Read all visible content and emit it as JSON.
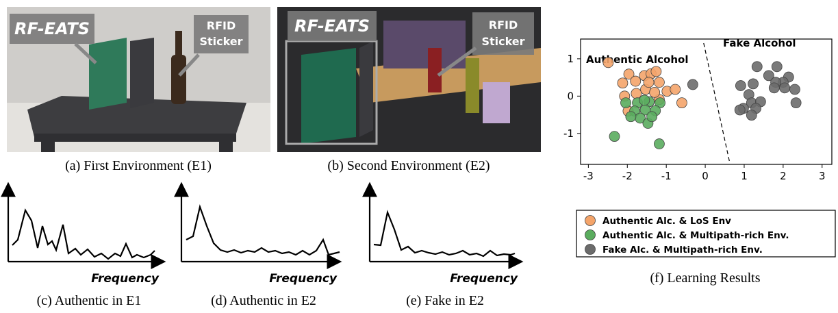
{
  "panels": {
    "a": {
      "caption": "(a) First Environment (E1)",
      "device_label": "RF-EATS",
      "sticker_label": [
        "RFID",
        "Sticker"
      ]
    },
    "b": {
      "caption": "(b) Second Environment (E2)",
      "device_label": "RF-EATS",
      "sticker_label": [
        "RFID",
        "Sticker"
      ]
    },
    "c": {
      "caption": "(c) Authentic in E1",
      "axis_label": "Frequency"
    },
    "d": {
      "caption": "(d) Authentic in E2",
      "axis_label": "Frequency"
    },
    "e": {
      "caption": "(e) Fake in E2",
      "axis_label": "Frequency"
    },
    "f": {
      "caption": "(f) Learning Results"
    }
  },
  "chart_data": {
    "type": "scatter",
    "annotations": [
      "Authentic Alcohol",
      "Fake Alcohol"
    ],
    "xlim": [
      -3.2,
      3.25
    ],
    "ylim": [
      -1.83,
      1.53
    ],
    "xticks": [
      -3,
      -2,
      -1,
      0,
      1,
      2,
      3
    ],
    "yticks": [
      -1,
      0,
      1
    ],
    "boundary": {
      "x": [
        -0.04,
        0.63
      ],
      "y": [
        1.42,
        -1.79
      ]
    },
    "series": [
      {
        "name": "Authentic Alc. & LoS Env",
        "color": "#f4a46a",
        "x": [
          -2.49,
          -1.96,
          -1.56,
          -1.39,
          -1.26,
          -1.18,
          -1.79,
          -2.12,
          -0.98,
          -0.77,
          -1.53,
          -1.77,
          -2.07,
          -0.6,
          -1.18,
          -1.98,
          -1.45,
          -1.3
        ],
        "values": [
          0.9,
          0.59,
          0.55,
          0.6,
          0.66,
          0.37,
          0.4,
          0.35,
          0.13,
          0.18,
          0.18,
          0.07,
          0,
          -0.18,
          -0.09,
          -0.4,
          0.37,
          0.1
        ]
      },
      {
        "name": "Authentic Alc. & Multipath-rich Env.",
        "color": "#5aac5e",
        "x": [
          -2.04,
          -1.74,
          -1.44,
          -1.16,
          -1.81,
          -1.54,
          -1.28,
          -1.67,
          -1.47,
          -1.91,
          -1.37,
          -2.33,
          -1.18,
          -1.56
        ],
        "values": [
          -0.18,
          -0.18,
          -0.15,
          -0.18,
          -0.4,
          -0.37,
          -0.39,
          -0.59,
          -0.73,
          -0.55,
          -0.55,
          -1.08,
          -1.28,
          -0.11
        ]
      },
      {
        "name": "Fake Alc. & Multipath-rich Env.",
        "color": "#6b6b6b",
        "x": [
          -0.32,
          1.33,
          1.84,
          1.63,
          2.14,
          2.0,
          2.3,
          1.81,
          1.23,
          0.91,
          1.12,
          1.77,
          1.19,
          1.42,
          0.98,
          1.3,
          1.19,
          0.89,
          2.33,
          2.04
        ],
        "values": [
          0.31,
          0.79,
          0.79,
          0.55,
          0.51,
          0.37,
          0.18,
          0.37,
          0.33,
          0.28,
          0.04,
          0.22,
          -0.18,
          -0.15,
          -0.33,
          -0.33,
          -0.51,
          -0.37,
          -0.18,
          0.22
        ]
      }
    ]
  }
}
